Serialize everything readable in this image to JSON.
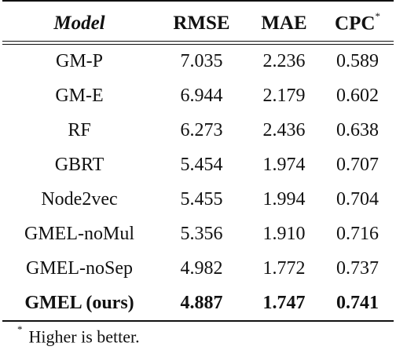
{
  "table": {
    "headers": {
      "model": "Model",
      "rmse": "RMSE",
      "mae": "MAE",
      "cpc": "CPC",
      "cpc_mark": "*"
    },
    "rows": [
      {
        "model": "GM-P",
        "rmse": "7.035",
        "mae": "2.236",
        "cpc": "0.589"
      },
      {
        "model": "GM-E",
        "rmse": "6.944",
        "mae": "2.179",
        "cpc": "0.602"
      },
      {
        "model": "RF",
        "rmse": "6.273",
        "mae": "2.436",
        "cpc": "0.638"
      },
      {
        "model": "GBRT",
        "rmse": "5.454",
        "mae": "1.974",
        "cpc": "0.707"
      },
      {
        "model": "Node2vec",
        "rmse": "5.455",
        "mae": "1.994",
        "cpc": "0.704"
      },
      {
        "model": "GMEL-noMul",
        "rmse": "5.356",
        "mae": "1.910",
        "cpc": "0.716"
      },
      {
        "model": "GMEL-noSep",
        "rmse": "4.982",
        "mae": "1.772",
        "cpc": "0.737"
      },
      {
        "model": "GMEL (ours)",
        "rmse": "4.887",
        "mae": "1.747",
        "cpc": "0.741"
      }
    ]
  },
  "footnote": {
    "mark": "*",
    "text": "Higher is better."
  }
}
